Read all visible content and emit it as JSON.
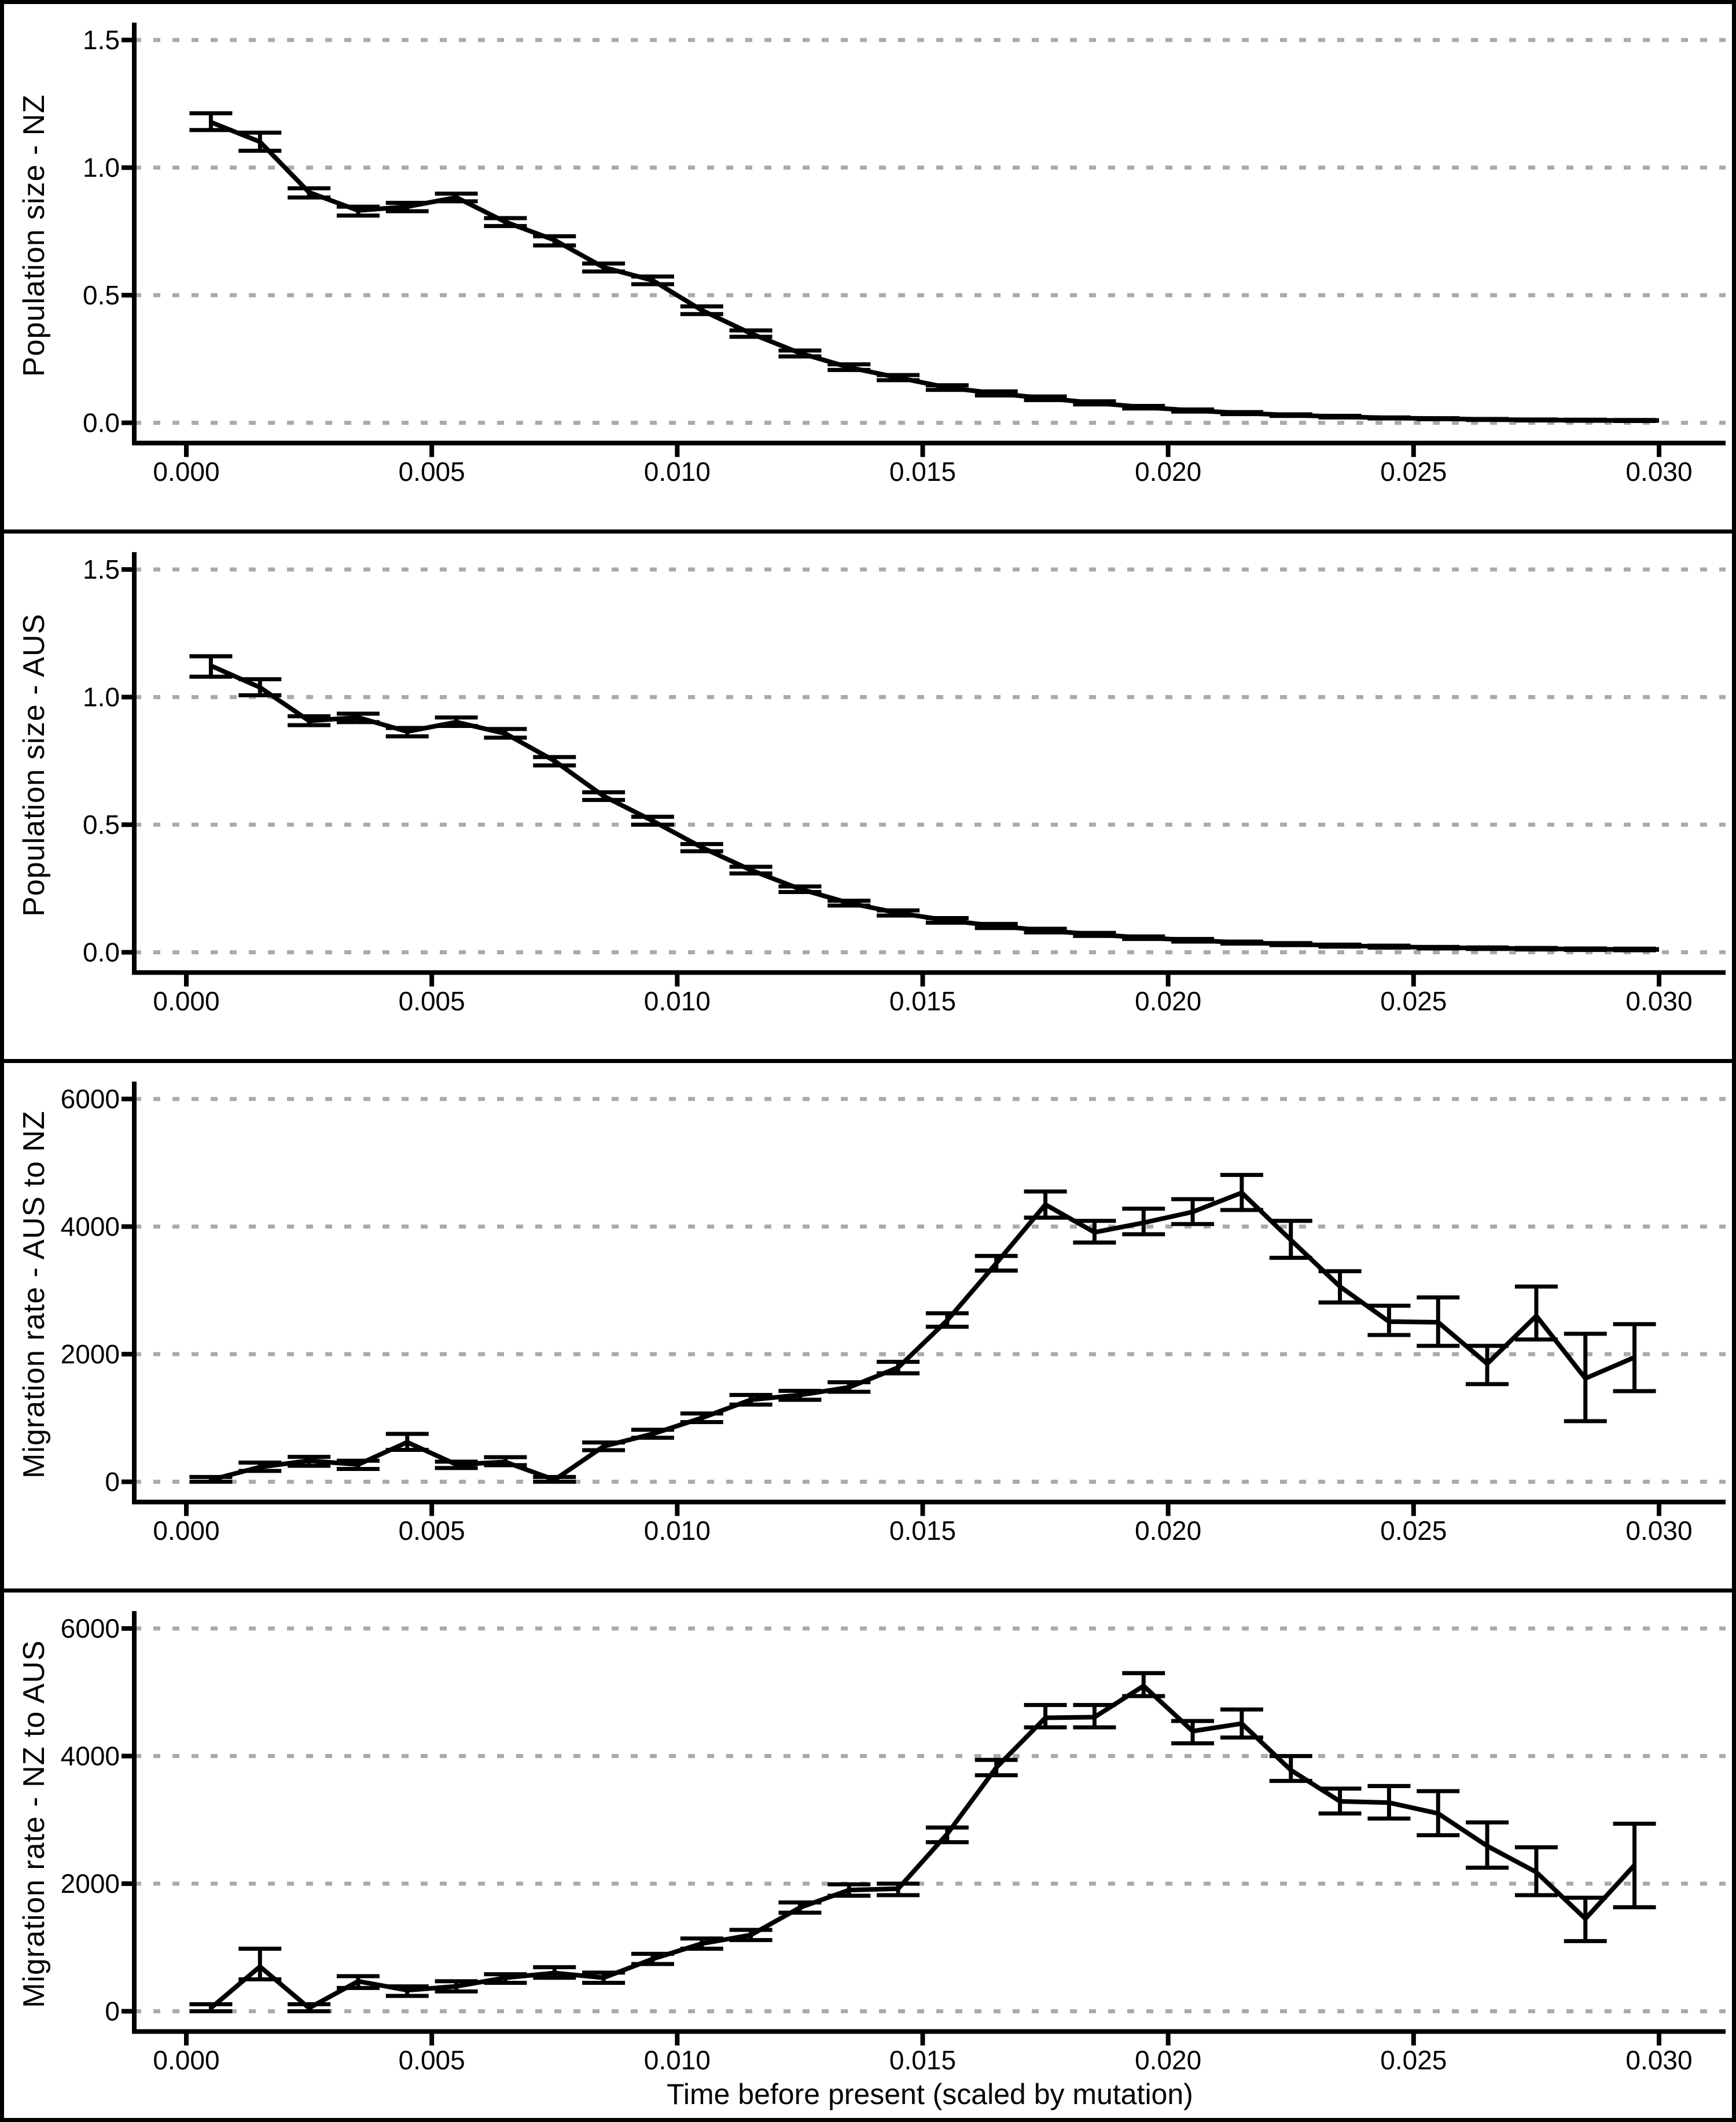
{
  "figure": {
    "x_axis_title": "Time before present (scaled by mutation)",
    "x_tick_labels": [
      "0.000",
      "0.005",
      "0.010",
      "0.015",
      "0.020",
      "0.025",
      "0.030"
    ],
    "x_tick_values": [
      0,
      0.005,
      0.01,
      0.015,
      0.02,
      0.025,
      0.03
    ],
    "xlim": [
      0,
      0.03
    ],
    "grid_style": "dotted-horizontal-only",
    "colors": {
      "line": "#000000",
      "error_bar": "#000000",
      "grid": "#aaaaaa",
      "axis": "#000000",
      "background": "#ffffff",
      "panel_border": "#000000",
      "text": "#000000"
    }
  },
  "chart_data": [
    {
      "type": "line",
      "panel": 1,
      "y_axis_title": "Population size - NZ",
      "y_tick_labels": [
        "0.0",
        "0.5",
        "1.0",
        "1.5"
      ],
      "y_tick_values": [
        0,
        0.5,
        1.0,
        1.5
      ],
      "ylim": [
        0,
        1.5
      ],
      "error_bars": true,
      "x_end": 0.03,
      "x": [
        0.0005,
        0.0015,
        0.0025,
        0.0035,
        0.0045,
        0.0055,
        0.0065,
        0.0075,
        0.0085,
        0.0095,
        0.0105,
        0.0115,
        0.0125,
        0.0135,
        0.0145,
        0.0155,
        0.0165,
        0.0175,
        0.0185,
        0.0195,
        0.0205,
        0.0215,
        0.0225,
        0.0235,
        0.0245,
        0.0255,
        0.0265,
        0.0275,
        0.0285,
        0.0295
      ],
      "y": [
        1.178,
        1.101,
        0.903,
        0.832,
        0.847,
        0.883,
        0.787,
        0.716,
        0.609,
        0.558,
        0.441,
        0.35,
        0.273,
        0.217,
        0.177,
        0.138,
        0.115,
        0.096,
        0.078,
        0.061,
        0.048,
        0.038,
        0.03,
        0.024,
        0.019,
        0.016,
        0.013,
        0.011,
        0.01,
        0.009
      ],
      "err_lo": [
        1.147,
        1.066,
        0.883,
        0.812,
        0.829,
        0.868,
        0.771,
        0.695,
        0.593,
        0.543,
        0.426,
        0.337,
        0.26,
        0.207,
        0.167,
        0.129,
        0.107,
        0.089,
        0.072,
        0.056,
        0.044,
        0.034,
        0.027,
        0.021,
        0.017,
        0.014,
        0.011,
        0.009,
        0.008,
        0.007
      ],
      "err_hi": [
        1.213,
        1.137,
        0.919,
        0.847,
        0.862,
        0.898,
        0.802,
        0.731,
        0.624,
        0.573,
        0.456,
        0.362,
        0.283,
        0.229,
        0.187,
        0.147,
        0.123,
        0.103,
        0.084,
        0.066,
        0.052,
        0.042,
        0.033,
        0.027,
        0.021,
        0.018,
        0.015,
        0.013,
        0.012,
        0.011
      ]
    },
    {
      "type": "line",
      "panel": 2,
      "y_axis_title": "Population size - AUS",
      "y_tick_labels": [
        "0.0",
        "0.5",
        "1.0",
        "1.5"
      ],
      "y_tick_values": [
        0,
        0.5,
        1.0,
        1.5
      ],
      "ylim": [
        0,
        1.5
      ],
      "error_bars": true,
      "x_end": 0.03,
      "x": [
        0.0005,
        0.0015,
        0.0025,
        0.0035,
        0.0045,
        0.0055,
        0.0065,
        0.0075,
        0.0085,
        0.0095,
        0.0105,
        0.0115,
        0.0125,
        0.0135,
        0.0145,
        0.0155,
        0.0165,
        0.0175,
        0.0185,
        0.0195,
        0.0205,
        0.0215,
        0.0225,
        0.0235,
        0.0245,
        0.0255,
        0.0265,
        0.0275,
        0.0285,
        0.0295
      ],
      "y": [
        1.123,
        1.038,
        0.907,
        0.92,
        0.865,
        0.902,
        0.857,
        0.75,
        0.612,
        0.515,
        0.411,
        0.322,
        0.248,
        0.193,
        0.154,
        0.125,
        0.103,
        0.085,
        0.07,
        0.057,
        0.047,
        0.038,
        0.032,
        0.026,
        0.022,
        0.018,
        0.016,
        0.014,
        0.012,
        0.011
      ],
      "err_lo": [
        1.08,
        1.007,
        0.89,
        0.902,
        0.846,
        0.887,
        0.841,
        0.732,
        0.597,
        0.5,
        0.396,
        0.309,
        0.236,
        0.183,
        0.144,
        0.116,
        0.095,
        0.078,
        0.064,
        0.052,
        0.042,
        0.034,
        0.028,
        0.022,
        0.018,
        0.015,
        0.013,
        0.011,
        0.009,
        0.008
      ],
      "err_hi": [
        1.16,
        1.07,
        0.925,
        0.935,
        0.879,
        0.92,
        0.875,
        0.765,
        0.627,
        0.531,
        0.424,
        0.335,
        0.258,
        0.202,
        0.164,
        0.134,
        0.111,
        0.092,
        0.076,
        0.062,
        0.052,
        0.042,
        0.036,
        0.03,
        0.026,
        0.021,
        0.019,
        0.017,
        0.015,
        0.014
      ]
    },
    {
      "type": "line",
      "panel": 3,
      "y_axis_title": "Migration rate - AUS to NZ",
      "y_tick_labels": [
        "0",
        "2000",
        "4000",
        "6000"
      ],
      "y_tick_values": [
        0,
        2000,
        4000,
        6000
      ],
      "ylim": [
        0,
        6000
      ],
      "error_bars": true,
      "x_end": null,
      "x": [
        0.0005,
        0.0015,
        0.0025,
        0.0035,
        0.0045,
        0.0055,
        0.0065,
        0.0075,
        0.0085,
        0.0095,
        0.0105,
        0.0115,
        0.0125,
        0.0135,
        0.0145,
        0.0155,
        0.0165,
        0.0175,
        0.0185,
        0.0195,
        0.0205,
        0.0215,
        0.0225,
        0.0235,
        0.0245,
        0.0255,
        0.0265,
        0.0275,
        0.0285,
        0.0295
      ],
      "y": [
        30,
        230,
        330,
        270,
        620,
        270,
        310,
        30,
        555,
        750,
        1000,
        1285,
        1360,
        1480,
        1790,
        2530,
        3425,
        4345,
        3910,
        4060,
        4230,
        4530,
        3790,
        3060,
        2510,
        2500,
        1850,
        2600,
        1620,
        1950
      ],
      "err_lo": [
        0,
        170,
        250,
        200,
        500,
        215,
        260,
        0,
        495,
        690,
        935,
        1210,
        1285,
        1410,
        1700,
        2430,
        3310,
        4140,
        3750,
        3880,
        4040,
        4260,
        3510,
        2810,
        2300,
        2130,
        1530,
        2230,
        950,
        1420
      ],
      "err_hi": [
        75,
        300,
        390,
        330,
        750,
        315,
        385,
        75,
        615,
        815,
        1070,
        1360,
        1425,
        1560,
        1880,
        2640,
        3540,
        4550,
        4090,
        4280,
        4430,
        4810,
        4090,
        3300,
        2760,
        2890,
        2130,
        3060,
        2320,
        2470
      ]
    },
    {
      "type": "line",
      "panel": 4,
      "y_axis_title": "Migration rate - NZ to AUS",
      "y_tick_labels": [
        "0",
        "2000",
        "4000",
        "6000"
      ],
      "y_tick_values": [
        0,
        2000,
        4000,
        6000
      ],
      "ylim": [
        0,
        6000
      ],
      "error_bars": true,
      "x_end": null,
      "x": [
        0.0005,
        0.0015,
        0.0025,
        0.0035,
        0.0045,
        0.0055,
        0.0065,
        0.0075,
        0.0085,
        0.0095,
        0.0105,
        0.0115,
        0.0125,
        0.0135,
        0.0145,
        0.0155,
        0.0165,
        0.0175,
        0.0185,
        0.0195,
        0.0205,
        0.0215,
        0.0225,
        0.0235,
        0.0245,
        0.0255,
        0.0265,
        0.0275,
        0.0285,
        0.0295
      ],
      "y": [
        50,
        700,
        50,
        470,
        330,
        390,
        525,
        600,
        525,
        820,
        1060,
        1195,
        1625,
        1900,
        1920,
        2780,
        3820,
        4600,
        4610,
        5100,
        4390,
        4510,
        3780,
        3290,
        3270,
        3100,
        2590,
        2180,
        1450,
        2290
      ],
      "err_lo": [
        0,
        500,
        0,
        365,
        240,
        310,
        445,
        525,
        445,
        740,
        980,
        1115,
        1545,
        1810,
        1820,
        2650,
        3700,
        4450,
        4450,
        4940,
        4200,
        4290,
        3610,
        3100,
        3020,
        2760,
        2250,
        1820,
        1100,
        1630
      ],
      "err_hi": [
        110,
        980,
        110,
        550,
        390,
        470,
        580,
        690,
        605,
        900,
        1140,
        1275,
        1705,
        1990,
        2000,
        2880,
        3940,
        4800,
        4800,
        5300,
        4550,
        4730,
        4000,
        3490,
        3530,
        3450,
        2960,
        2570,
        1780,
        2940
      ]
    }
  ]
}
